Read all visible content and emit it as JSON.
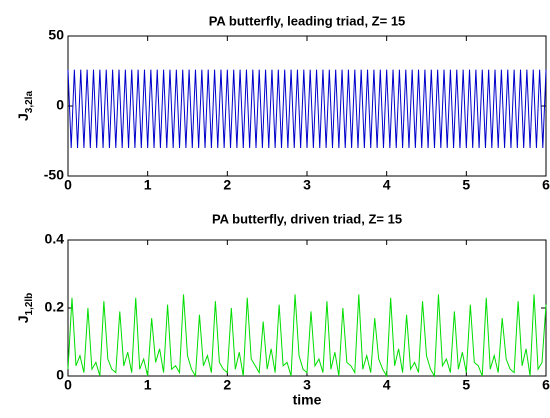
{
  "chart_data": [
    {
      "type": "line",
      "title": "PA butterfly, leading  triad,  Z= 15",
      "ylabel": {
        "main": "J",
        "sub": "3,2la"
      },
      "color": "#0000cc",
      "xlim": [
        0,
        6
      ],
      "xticks": [
        0,
        1,
        2,
        3,
        4,
        5,
        6
      ],
      "ylim": [
        -50,
        50
      ],
      "yticks": [
        -50,
        0,
        50
      ],
      "grid": false,
      "x": [
        0,
        0.04,
        0.08,
        0.12,
        0.16,
        0.2,
        0.24,
        0.28,
        0.32,
        0.36,
        0.4,
        0.44,
        0.48,
        0.52,
        0.56,
        0.6,
        0.64,
        0.68,
        0.72,
        0.76,
        0.8,
        0.84,
        0.88,
        0.92,
        0.96,
        1,
        1.04,
        1.08,
        1.12,
        1.16,
        1.2,
        1.24,
        1.28,
        1.32,
        1.36,
        1.4,
        1.44,
        1.48,
        1.52,
        1.56,
        1.6,
        1.64,
        1.68,
        1.72,
        1.76,
        1.8,
        1.84,
        1.88,
        1.92,
        1.96,
        2,
        2.04,
        2.08,
        2.12,
        2.16,
        2.2,
        2.24,
        2.28,
        2.32,
        2.36,
        2.4,
        2.44,
        2.48,
        2.52,
        2.56,
        2.6,
        2.64,
        2.68,
        2.72,
        2.76,
        2.8,
        2.84,
        2.88,
        2.92,
        2.96,
        3,
        3.04,
        3.08,
        3.12,
        3.16,
        3.2,
        3.24,
        3.28,
        3.32,
        3.36,
        3.4,
        3.44,
        3.48,
        3.52,
        3.56,
        3.6,
        3.64,
        3.68,
        3.72,
        3.76,
        3.8,
        3.84,
        3.88,
        3.92,
        3.96,
        4,
        4.04,
        4.08,
        4.12,
        4.16,
        4.2,
        4.24,
        4.28,
        4.32,
        4.36,
        4.4,
        4.44,
        4.48,
        4.52,
        4.56,
        4.6,
        4.64,
        4.68,
        4.72,
        4.76,
        4.8,
        4.84,
        4.88,
        4.92,
        4.96,
        5,
        5.04,
        5.08,
        5.12,
        5.16,
        5.2,
        5.24,
        5.28,
        5.32,
        5.36,
        5.4,
        5.44,
        5.48,
        5.52,
        5.56,
        5.6,
        5.64,
        5.68,
        5.72,
        5.76,
        5.8,
        5.84,
        5.88,
        5.92,
        5.96,
        6
      ],
      "values": [
        26,
        -30,
        26,
        -30,
        26,
        -30,
        26,
        -30,
        26,
        -30,
        26,
        -30,
        26,
        -30,
        26,
        -30,
        26,
        -30,
        26,
        -30,
        26,
        -30,
        26,
        -30,
        26,
        -30,
        26,
        -30,
        26,
        -30,
        26,
        -30,
        26,
        -30,
        26,
        -30,
        26,
        -30,
        26,
        -30,
        26,
        -30,
        26,
        -30,
        26,
        -30,
        26,
        -30,
        26,
        -30,
        26,
        -30,
        26,
        -30,
        26,
        -30,
        26,
        -30,
        26,
        -30,
        26,
        -30,
        26,
        -30,
        26,
        -30,
        26,
        -30,
        26,
        -30,
        26,
        -30,
        26,
        -30,
        26,
        -30,
        26,
        -30,
        26,
        -30,
        26,
        -30,
        26,
        -30,
        26,
        -30,
        26,
        -30,
        26,
        -30,
        26,
        -30,
        26,
        -30,
        26,
        -30,
        26,
        -30,
        26,
        -30,
        26,
        -30,
        26,
        -30,
        26,
        -30,
        26,
        -30,
        26,
        -30,
        26,
        -30,
        26,
        -30,
        26,
        -30,
        26,
        -30,
        26,
        -30,
        26,
        -30,
        26,
        -30,
        26,
        -30,
        26,
        -30,
        26,
        -30,
        26,
        -30,
        26,
        -30,
        26,
        -30,
        26,
        -30,
        26,
        -30,
        26,
        -30,
        26,
        -30,
        26,
        -30,
        26,
        -30,
        26,
        -30,
        26
      ]
    },
    {
      "type": "line",
      "title": "PA butterfly, driven  triad,  Z= 15",
      "ylabel": {
        "main": "J",
        "sub": "1,2lb"
      },
      "xlabel": "time",
      "color": "#00dd00",
      "xlim": [
        0,
        6
      ],
      "xticks": [
        0,
        1,
        2,
        3,
        4,
        5,
        6
      ],
      "ylim": [
        0,
        0.4
      ],
      "yticks": [
        0,
        0.2,
        0.4
      ],
      "grid": false,
      "x": [
        0,
        0.05,
        0.1,
        0.15,
        0.2,
        0.25,
        0.3,
        0.35,
        0.4,
        0.45,
        0.5,
        0.55,
        0.6,
        0.65,
        0.7,
        0.75,
        0.8,
        0.85,
        0.9,
        0.95,
        1,
        1.05,
        1.1,
        1.15,
        1.2,
        1.25,
        1.3,
        1.35,
        1.4,
        1.45,
        1.5,
        1.55,
        1.6,
        1.65,
        1.7,
        1.75,
        1.8,
        1.85,
        1.9,
        1.95,
        2,
        2.05,
        2.1,
        2.15,
        2.2,
        2.25,
        2.3,
        2.35,
        2.4,
        2.45,
        2.5,
        2.55,
        2.6,
        2.65,
        2.7,
        2.75,
        2.8,
        2.85,
        2.9,
        2.95,
        3,
        3.05,
        3.1,
        3.15,
        3.2,
        3.25,
        3.3,
        3.35,
        3.4,
        3.45,
        3.5,
        3.55,
        3.6,
        3.65,
        3.7,
        3.75,
        3.8,
        3.85,
        3.9,
        3.95,
        4,
        4.05,
        4.1,
        4.15,
        4.2,
        4.25,
        4.3,
        4.35,
        4.4,
        4.45,
        4.5,
        4.55,
        4.6,
        4.65,
        4.7,
        4.75,
        4.8,
        4.85,
        4.9,
        4.95,
        5,
        5.05,
        5.1,
        5.15,
        5.2,
        5.25,
        5.3,
        5.35,
        5.4,
        5.45,
        5.5,
        5.55,
        5.6,
        5.65,
        5.7,
        5.75,
        5.8,
        5.85,
        5.9,
        5.95,
        6
      ],
      "values": [
        0.02,
        0.23,
        0.03,
        0.06,
        0.01,
        0.2,
        0.02,
        0.04,
        0,
        0.22,
        0.05,
        0.02,
        0.01,
        0.19,
        0.03,
        0.07,
        0.01,
        0.23,
        0.02,
        0.05,
        0,
        0.17,
        0.04,
        0.08,
        0.01,
        0.21,
        0.02,
        0.03,
        0.01,
        0.24,
        0.06,
        0.02,
        0,
        0.18,
        0.03,
        0.06,
        0.01,
        0.22,
        0.04,
        0.02,
        0.01,
        0.2,
        0.02,
        0.07,
        0,
        0.23,
        0.05,
        0.03,
        0.01,
        0.16,
        0.02,
        0.08,
        0.01,
        0.21,
        0.03,
        0.04,
        0,
        0.24,
        0.06,
        0.02,
        0.01,
        0.19,
        0.03,
        0.05,
        0.01,
        0.22,
        0.02,
        0.07,
        0,
        0.2,
        0.04,
        0.03,
        0.01,
        0.24,
        0.02,
        0.06,
        0.01,
        0.17,
        0.05,
        0.02,
        0,
        0.23,
        0.03,
        0.08,
        0.01,
        0.18,
        0.02,
        0.04,
        0.01,
        0.22,
        0.06,
        0.02,
        0,
        0.24,
        0.03,
        0.05,
        0.01,
        0.19,
        0.02,
        0.07,
        0.01,
        0.21,
        0.04,
        0.03,
        0,
        0.23,
        0.02,
        0.06,
        0.01,
        0.17,
        0.05,
        0.02,
        0.01,
        0.22,
        0.03,
        0.08,
        0,
        0.24,
        0.02,
        0.04,
        0.21
      ]
    }
  ]
}
